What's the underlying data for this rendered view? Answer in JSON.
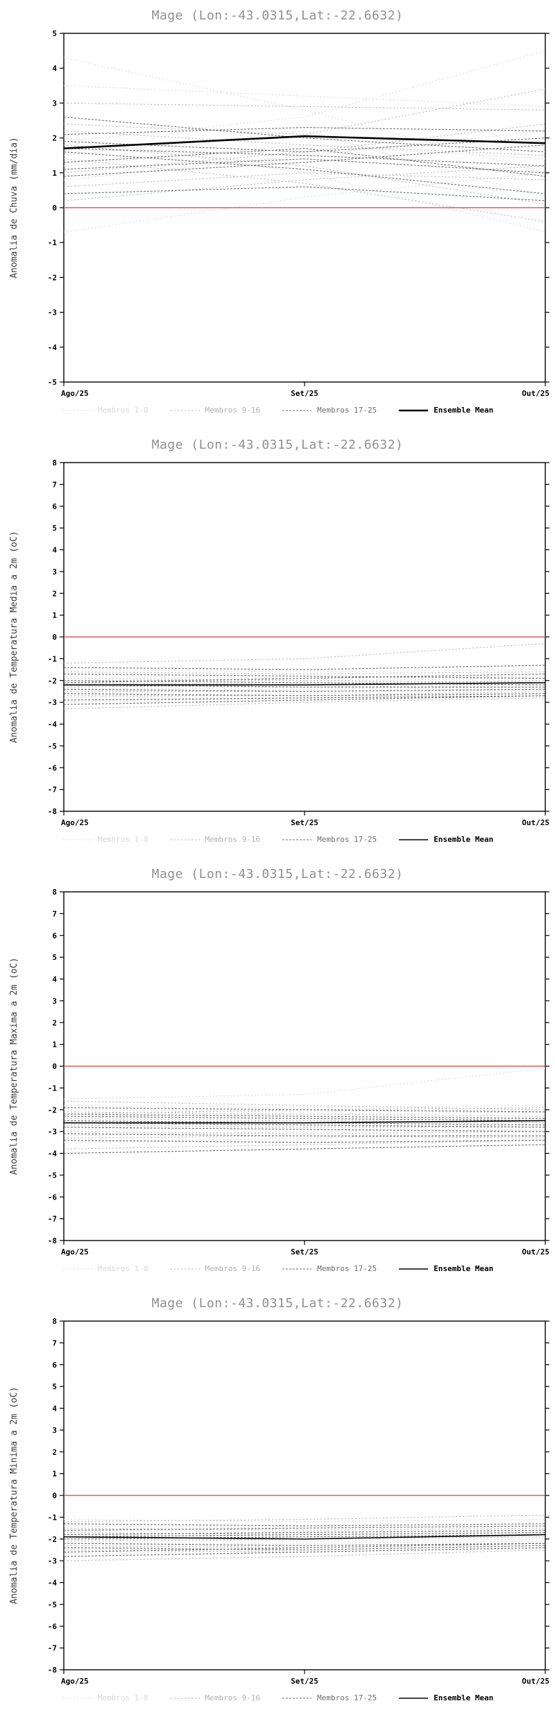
{
  "page": {
    "background": "#ffffff"
  },
  "chart_data": [
    {
      "type": "line",
      "title": "Mage (Lon:-43.0315,Lat:-22.6632)",
      "ylabel": "Anomalia de Chuva (mm/dia)",
      "ylim": [
        -5,
        5
      ],
      "ytick_step": 1,
      "categories": [
        "Ago/25",
        "Set/25",
        "Out/25"
      ],
      "legend_position": "bottom",
      "grid": false,
      "reference_line": {
        "value": 0,
        "color": "#e05c5c",
        "width": 1.6
      },
      "groups": [
        {
          "name": "Membros 1-8",
          "color": "#d9d9d9",
          "dash": "2,3",
          "width": 1.1,
          "members": [
            [
              4.3,
              2.8,
              1.0
            ],
            [
              1.9,
              2.6,
              4.5
            ],
            [
              3.5,
              3.2,
              2.9
            ],
            [
              1.5,
              2.2,
              0.3
            ],
            [
              0.8,
              1.5,
              2.2
            ],
            [
              2.0,
              1.0,
              -0.7
            ],
            [
              1.2,
              1.8,
              1.4
            ],
            [
              -0.7,
              0.3,
              1.0
            ]
          ]
        },
        {
          "name": "Membros 9-16",
          "color": "#b2b2b2",
          "dash": "2,3",
          "width": 1.1,
          "members": [
            [
              3.0,
              2.9,
              2.8
            ],
            [
              2.2,
              1.8,
              1.5
            ],
            [
              1.8,
              1.2,
              0.1
            ],
            [
              1.0,
              1.6,
              2.4
            ],
            [
              0.6,
              1.0,
              0.8
            ],
            [
              2.4,
              2.1,
              3.4
            ],
            [
              1.4,
              0.7,
              -0.4
            ],
            [
              0.2,
              0.8,
              1.2
            ]
          ]
        },
        {
          "name": "Membros 17-25",
          "color": "#6e6e6e",
          "dash": "3,2",
          "width": 1.1,
          "members": [
            [
              2.1,
              2.3,
              2.2
            ],
            [
              1.7,
              1.5,
              1.2
            ],
            [
              1.3,
              1.7,
              0.9
            ],
            [
              0.9,
              1.3,
              1.8
            ],
            [
              1.6,
              1.1,
              0.4
            ],
            [
              0.4,
              0.6,
              0.2
            ],
            [
              2.6,
              2.0,
              1.6
            ],
            [
              1.1,
              1.4,
              1.0
            ],
            [
              1.9,
              1.6,
              2.0
            ]
          ]
        },
        {
          "name": "Ensemble Mean",
          "color": "#000000",
          "dash": "",
          "width": 2.6,
          "members": [
            [
              1.7,
              2.05,
              1.85
            ]
          ]
        }
      ]
    },
    {
      "type": "line",
      "title": "Mage (Lon:-43.0315,Lat:-22.6632)",
      "ylabel": "Anomalia de Temperatura Media a 2m (oC)",
      "ylim": [
        -8,
        8
      ],
      "ytick_step": 1,
      "categories": [
        "Ago/25",
        "Set/25",
        "Out/25"
      ],
      "legend_position": "bottom",
      "grid": false,
      "reference_line": {
        "value": 0,
        "color": "#e05c5c",
        "width": 1.6
      },
      "groups": [
        {
          "name": "Membros 1-8",
          "color": "#d9d9d9",
          "dash": "2,3",
          "width": 1.1,
          "members": [
            [
              -1.5,
              -1.6,
              -1.5
            ],
            [
              -1.8,
              -1.9,
              -1.8
            ],
            [
              -2.0,
              -2.0,
              -1.9
            ],
            [
              -2.2,
              -2.1,
              -2.0
            ],
            [
              -2.4,
              -2.3,
              -2.2
            ],
            [
              -2.6,
              -2.4,
              -2.3
            ],
            [
              -2.8,
              -2.6,
              -2.4
            ],
            [
              -3.0,
              -2.8,
              -2.6
            ]
          ]
        },
        {
          "name": "Membros 9-16",
          "color": "#b2b2b2",
          "dash": "2,3",
          "width": 1.1,
          "members": [
            [
              -1.2,
              -1.0,
              -0.3
            ],
            [
              -1.6,
              -1.7,
              -1.6
            ],
            [
              -1.9,
              -2.0,
              -2.1
            ],
            [
              -2.1,
              -2.2,
              -2.1
            ],
            [
              -2.3,
              -2.2,
              -2.0
            ],
            [
              -2.5,
              -2.5,
              -2.4
            ],
            [
              -2.7,
              -2.7,
              -2.5
            ],
            [
              -3.3,
              -3.0,
              -2.8
            ]
          ]
        },
        {
          "name": "Membros 17-25",
          "color": "#6e6e6e",
          "dash": "3,2",
          "width": 1.1,
          "members": [
            [
              -1.4,
              -1.5,
              -1.3
            ],
            [
              -1.7,
              -1.8,
              -1.9
            ],
            [
              -2.0,
              -2.1,
              -2.2
            ],
            [
              -2.2,
              -2.3,
              -2.3
            ],
            [
              -2.4,
              -2.5,
              -2.4
            ],
            [
              -2.6,
              -2.7,
              -2.6
            ],
            [
              -2.9,
              -2.8,
              -2.7
            ],
            [
              -3.1,
              -2.9,
              -2.7
            ],
            [
              -2.1,
              -1.9,
              -1.7
            ]
          ]
        },
        {
          "name": "Ensemble Mean",
          "color": "#000000",
          "dash": "",
          "width": 1.6,
          "members": [
            [
              -2.2,
              -2.2,
              -2.1
            ]
          ]
        }
      ]
    },
    {
      "type": "line",
      "title": "Mage (Lon:-43.0315,Lat:-22.6632)",
      "ylabel": "Anomalia de Temperatura Maxima a 2m (oC)",
      "ylim": [
        -8,
        8
      ],
      "ytick_step": 1,
      "categories": [
        "Ago/25",
        "Set/25",
        "Out/25"
      ],
      "legend_position": "bottom",
      "grid": false,
      "reference_line": {
        "value": 0,
        "color": "#e05c5c",
        "width": 1.6
      },
      "groups": [
        {
          "name": "Membros 1-8",
          "color": "#d9d9d9",
          "dash": "2,3",
          "width": 1.1,
          "members": [
            [
              -1.5,
              -1.3,
              -0.1
            ],
            [
              -2.0,
              -2.1,
              -2.0
            ],
            [
              -2.3,
              -2.2,
              -2.1
            ],
            [
              -2.6,
              -2.5,
              -2.4
            ],
            [
              -2.9,
              -2.8,
              -2.7
            ],
            [
              -3.2,
              -3.0,
              -2.9
            ],
            [
              -3.5,
              -3.3,
              -3.1
            ],
            [
              -1.8,
              -1.9,
              -1.8
            ]
          ]
        },
        {
          "name": "Membros 9-16",
          "color": "#b2b2b2",
          "dash": "2,3",
          "width": 1.1,
          "members": [
            [
              -1.6,
              -1.8,
              -2.0
            ],
            [
              -2.1,
              -2.2,
              -2.3
            ],
            [
              -2.4,
              -2.5,
              -2.6
            ],
            [
              -2.7,
              -2.8,
              -2.8
            ],
            [
              -3.0,
              -3.1,
              -3.0
            ],
            [
              -3.3,
              -3.2,
              -3.3
            ],
            [
              -3.8,
              -3.6,
              -3.4
            ],
            [
              -2.2,
              -2.0,
              -1.9
            ]
          ]
        },
        {
          "name": "Membros 17-25",
          "color": "#6e6e6e",
          "dash": "3,2",
          "width": 1.1,
          "members": [
            [
              -1.9,
              -2.0,
              -2.1
            ],
            [
              -2.2,
              -2.3,
              -2.4
            ],
            [
              -2.5,
              -2.6,
              -2.7
            ],
            [
              -2.8,
              -2.9,
              -3.0
            ],
            [
              -3.1,
              -3.2,
              -3.2
            ],
            [
              -3.4,
              -3.5,
              -3.4
            ],
            [
              -4.0,
              -3.8,
              -3.6
            ],
            [
              -2.6,
              -2.7,
              -2.8
            ],
            [
              -2.3,
              -2.4,
              -2.5
            ]
          ]
        },
        {
          "name": "Ensemble Mean",
          "color": "#000000",
          "dash": "",
          "width": 1.6,
          "members": [
            [
              -2.6,
              -2.6,
              -2.5
            ]
          ]
        }
      ]
    },
    {
      "type": "line",
      "title": "Mage (Lon:-43.0315,Lat:-22.6632)",
      "ylabel": "Anomalia de Temperatura Minima a 2m (oC)",
      "ylim": [
        -8,
        8
      ],
      "ytick_step": 1,
      "categories": [
        "Ago/25",
        "Set/25",
        "Out/25"
      ],
      "legend_position": "bottom",
      "grid": false,
      "reference_line": {
        "value": 0,
        "color": "#e05c5c",
        "width": 1.6
      },
      "groups": [
        {
          "name": "Membros 1-8",
          "color": "#d9d9d9",
          "dash": "2,3",
          "width": 1.1,
          "members": [
            [
              -1.1,
              -1.2,
              -1.1
            ],
            [
              -1.4,
              -1.5,
              -1.4
            ],
            [
              -1.6,
              -1.7,
              -1.6
            ],
            [
              -1.8,
              -1.9,
              -1.8
            ],
            [
              -2.0,
              -2.1,
              -2.0
            ],
            [
              -2.2,
              -2.2,
              -2.1
            ],
            [
              -2.4,
              -2.3,
              -2.2
            ],
            [
              -2.7,
              -2.5,
              -2.3
            ]
          ]
        },
        {
          "name": "Membros 9-16",
          "color": "#b2b2b2",
          "dash": "2,3",
          "width": 1.1,
          "members": [
            [
              -1.2,
              -1.1,
              -0.9
            ],
            [
              -1.5,
              -1.6,
              -1.5
            ],
            [
              -1.7,
              -1.8,
              -1.7
            ],
            [
              -1.9,
              -2.0,
              -1.9
            ],
            [
              -2.1,
              -2.0,
              -1.8
            ],
            [
              -2.3,
              -2.4,
              -2.2
            ],
            [
              -2.5,
              -2.6,
              -2.4
            ],
            [
              -3.0,
              -2.8,
              -2.5
            ]
          ]
        },
        {
          "name": "Membros 17-25",
          "color": "#6e6e6e",
          "dash": "3,2",
          "width": 1.1,
          "members": [
            [
              -1.3,
              -1.4,
              -1.3
            ],
            [
              -1.6,
              -1.5,
              -1.4
            ],
            [
              -1.8,
              -1.7,
              -1.6
            ],
            [
              -2.0,
              -1.9,
              -1.8
            ],
            [
              -2.2,
              -2.3,
              -2.2
            ],
            [
              -2.4,
              -2.5,
              -2.3
            ],
            [
              -2.6,
              -2.4,
              -2.2
            ],
            [
              -2.8,
              -2.6,
              -2.4
            ],
            [
              -1.9,
              -1.8,
              -1.7
            ]
          ]
        },
        {
          "name": "Ensemble Mean",
          "color": "#000000",
          "dash": "",
          "width": 1.6,
          "members": [
            [
              -1.9,
              -2.0,
              -1.8
            ]
          ]
        }
      ]
    }
  ]
}
